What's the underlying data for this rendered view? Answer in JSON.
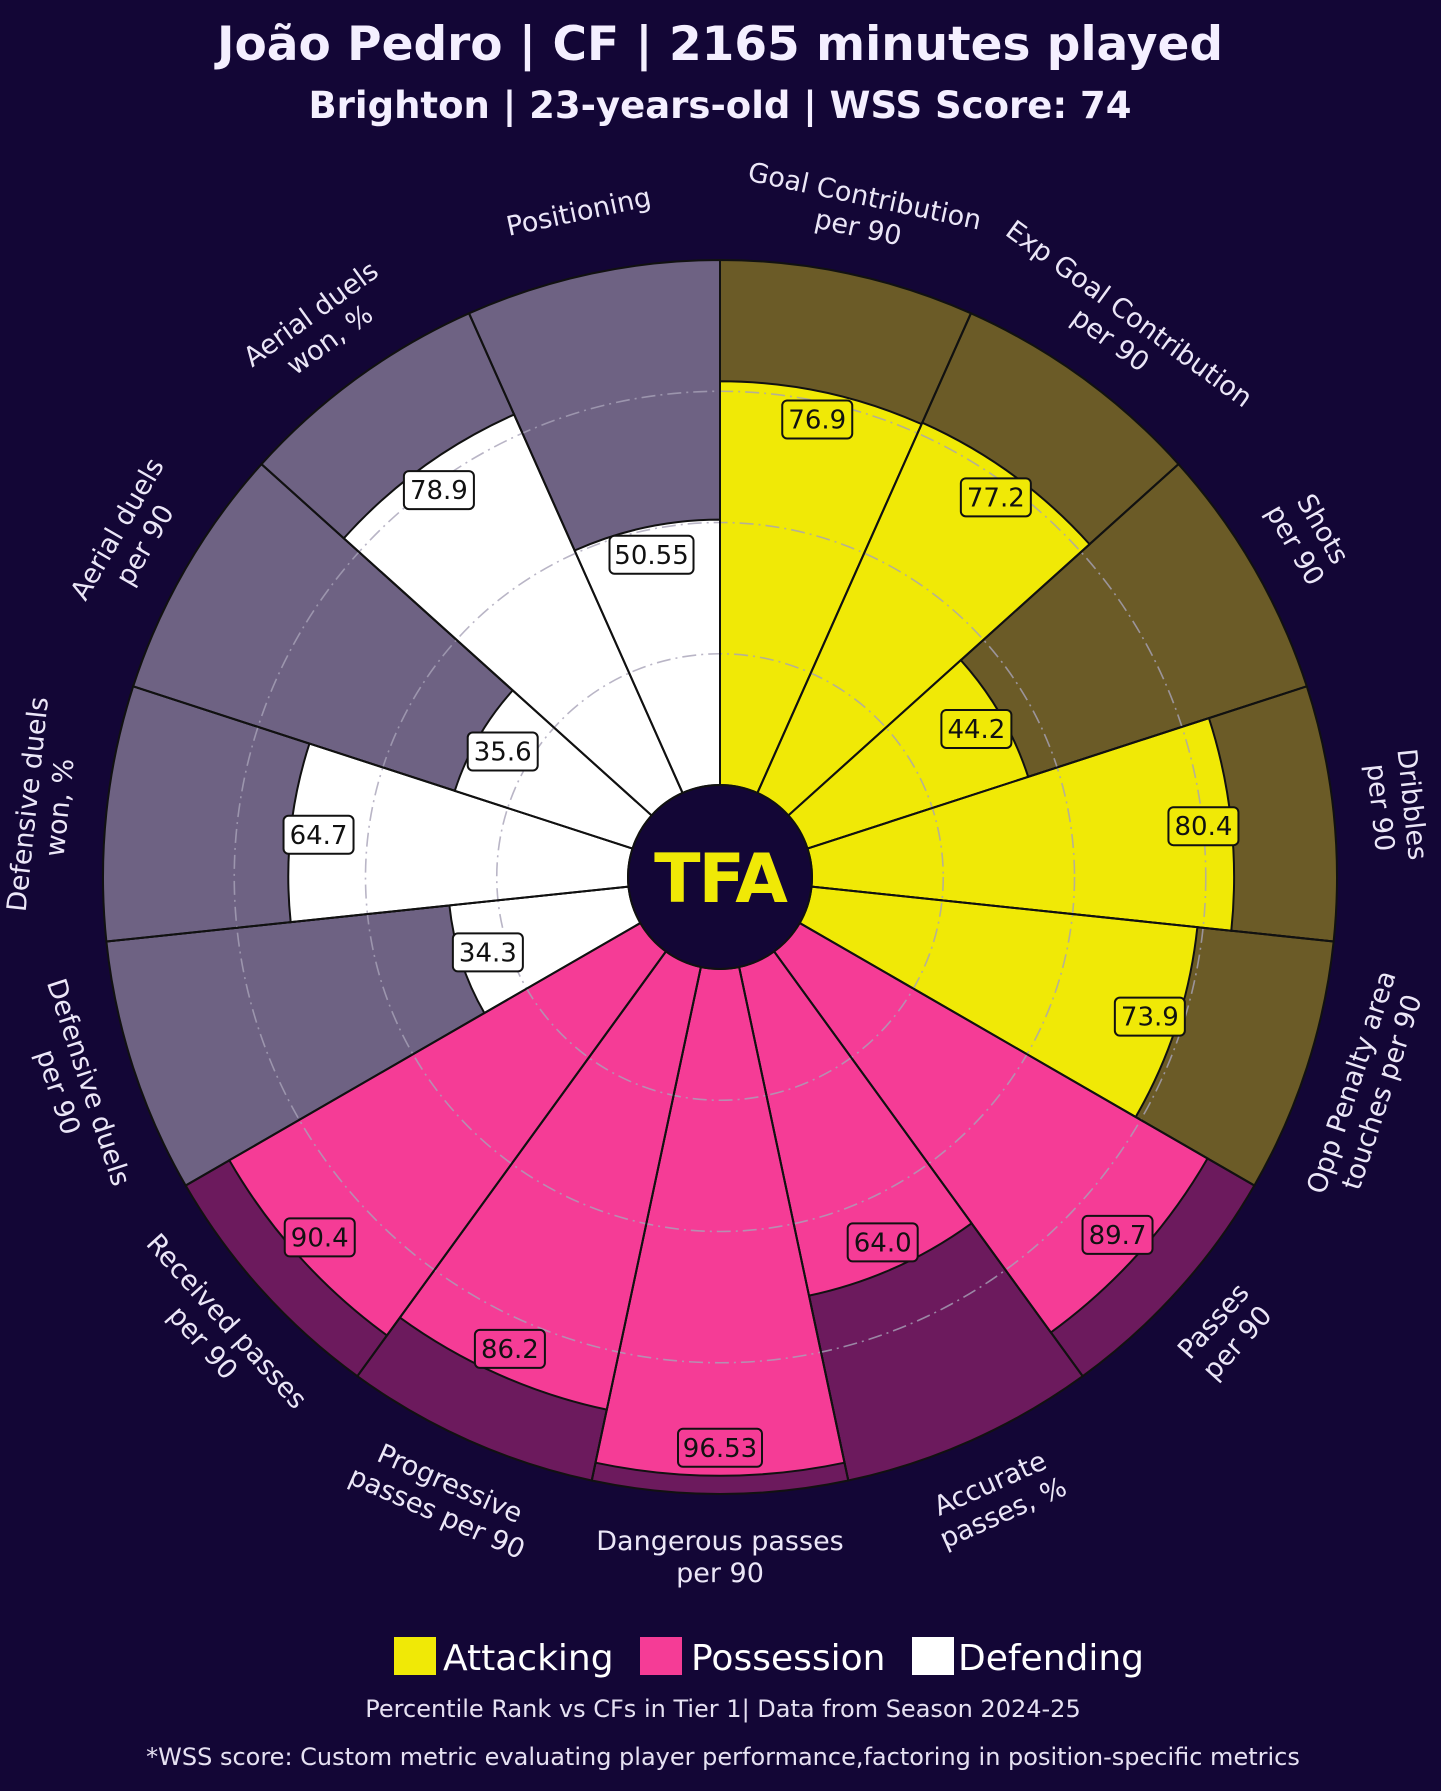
{
  "title": "João Pedro | CF | 2165 minutes played",
  "subtitle": "Brighton | 23-years-old | WSS Score: 74",
  "logo": "TFA",
  "legend": [
    {
      "label": "Attacking",
      "color": "#f0e906"
    },
    {
      "label": "Possession",
      "color": "#f53c96"
    },
    {
      "label": "Defending",
      "color": "#ffffff"
    }
  ],
  "footnote_1": "Percentile Rank vs CFs in Tier 1| Data from Season 2024-25",
  "footnote_2": "*WSS score: Custom metric evaluating player performance,factoring in position-specific metrics",
  "colors": {
    "background": "#130636",
    "attacking": "#f0e906",
    "attacking_bg": "#6b5b27",
    "possession": "#f53c96",
    "possession_bg": "#6c1a5d",
    "defending": "#ffffff",
    "defending_bg": "#6e6283",
    "edge": "#111111"
  },
  "chart_data": {
    "type": "pizza",
    "title": "João Pedro | CF | 2165 minutes played",
    "subtitle": "Brighton | 23-years-old | WSS Score: 74",
    "value_range": [
      0,
      100
    ],
    "scale": "percentile rank",
    "series": [
      {
        "label": "Goal Contribution\nper 90",
        "group": "Attacking",
        "value": 76.9,
        "display": "76.9"
      },
      {
        "label": "Exp Goal Contribution\nper 90",
        "group": "Attacking",
        "value": 77.2,
        "display": "77.2"
      },
      {
        "label": "Shots\nper 90",
        "group": "Attacking",
        "value": 44.2,
        "display": "44.2"
      },
      {
        "label": "Dribbles\nper 90",
        "group": "Attacking",
        "value": 80.4,
        "display": "80.4"
      },
      {
        "label": "Opp Penalty area\ntouches per 90",
        "group": "Attacking",
        "value": 73.9,
        "display": "73.9"
      },
      {
        "label": "Passes\nper 90",
        "group": "Possession",
        "value": 89.7,
        "display": "89.7"
      },
      {
        "label": "Accurate\npasses, %",
        "group": "Possession",
        "value": 64.0,
        "display": "64.0"
      },
      {
        "label": "Dangerous passes\nper 90",
        "group": "Possession",
        "value": 96.53,
        "display": "96.53"
      },
      {
        "label": "Progressive\npasses per 90",
        "group": "Possession",
        "value": 86.2,
        "display": "86.2"
      },
      {
        "label": "Received passes\nper 90",
        "group": "Possession",
        "value": 90.4,
        "display": "90.4"
      },
      {
        "label": "Defensive duels\nper 90",
        "group": "Defending",
        "value": 34.3,
        "display": "34.3"
      },
      {
        "label": "Defensive duels\nwon, %",
        "group": "Defending",
        "value": 64.7,
        "display": "64.7"
      },
      {
        "label": "Aerial duels\nper 90",
        "group": "Defending",
        "value": 35.6,
        "display": "35.6"
      },
      {
        "label": "Aerial duels\nwon, %",
        "group": "Defending",
        "value": 78.9,
        "display": "78.9"
      },
      {
        "label": "Positioning",
        "group": "Defending",
        "value": 50.55,
        "display": "50.55"
      }
    ]
  }
}
